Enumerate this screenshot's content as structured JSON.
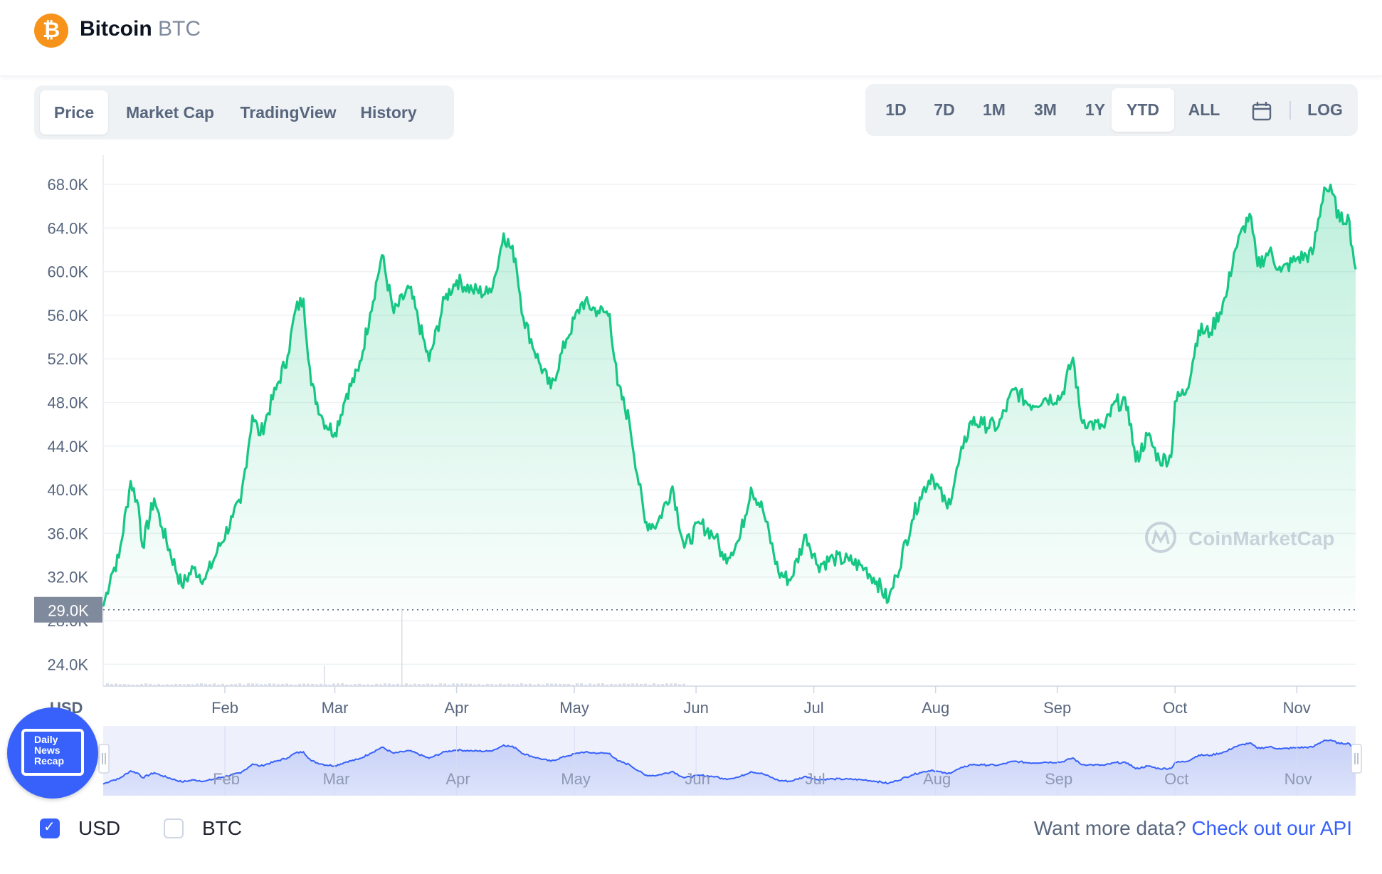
{
  "coin": {
    "name": "Bitcoin",
    "symbol": "BTC",
    "logo_glyph": "₿",
    "logo_color": "#f7931a"
  },
  "tabs": [
    {
      "label": "Price",
      "active": true
    },
    {
      "label": "Market Cap",
      "active": false
    },
    {
      "label": "TradingView",
      "active": false
    },
    {
      "label": "History",
      "active": false
    }
  ],
  "ranges": [
    {
      "label": "1D",
      "active": false
    },
    {
      "label": "7D",
      "active": false
    },
    {
      "label": "1M",
      "active": false
    },
    {
      "label": "3M",
      "active": false
    },
    {
      "label": "1Y",
      "active": false
    },
    {
      "label": "YTD",
      "active": true
    },
    {
      "label": "ALL",
      "active": false
    }
  ],
  "calendar_icon": "calendar-icon",
  "log_label": "LOG",
  "chart_data": {
    "type": "area",
    "title": "",
    "xlabel": "",
    "ylabel": "",
    "currency_label": "USD",
    "watermark": "CoinMarketCap",
    "ylim": [
      22000,
      70000
    ],
    "y_ticks": [
      24000,
      28000,
      32000,
      36000,
      40000,
      44000,
      48000,
      52000,
      56000,
      60000,
      64000,
      68000
    ],
    "y_tick_labels": [
      "24.0K",
      "28.0K",
      "32.0K",
      "36.0K",
      "40.0K",
      "44.0K",
      "48.0K",
      "52.0K",
      "56.0K",
      "60.0K",
      "64.0K",
      "68.0K"
    ],
    "reference_line": {
      "value": 29000,
      "label": "29.0K"
    },
    "x_range": [
      "2021-01-01",
      "2021-11-16"
    ],
    "x_ticks": [
      {
        "date": "2021-02-01",
        "label": "Feb"
      },
      {
        "date": "2021-03-01",
        "label": "Mar"
      },
      {
        "date": "2021-04-01",
        "label": "Apr"
      },
      {
        "date": "2021-05-01",
        "label": "May"
      },
      {
        "date": "2021-06-01",
        "label": "Jun"
      },
      {
        "date": "2021-07-01",
        "label": "Jul"
      },
      {
        "date": "2021-08-01",
        "label": "Aug"
      },
      {
        "date": "2021-09-01",
        "label": "Sep"
      },
      {
        "date": "2021-10-01",
        "label": "Oct"
      },
      {
        "date": "2021-11-01",
        "label": "Nov"
      }
    ],
    "line_color": "#16c784",
    "grid": true,
    "series": [
      {
        "x": [
          "2021-01-01",
          "2021-01-03",
          "2021-01-05",
          "2021-01-08",
          "2021-01-10",
          "2021-01-11",
          "2021-01-14",
          "2021-01-16",
          "2021-01-21",
          "2021-01-24",
          "2021-01-27",
          "2021-01-30",
          "2021-02-03",
          "2021-02-05",
          "2021-02-08",
          "2021-02-10",
          "2021-02-14",
          "2021-02-17",
          "2021-02-19",
          "2021-02-21",
          "2021-02-23",
          "2021-02-26",
          "2021-03-01",
          "2021-03-04",
          "2021-03-07",
          "2021-03-10",
          "2021-03-13",
          "2021-03-16",
          "2021-03-20",
          "2021-03-25",
          "2021-03-29",
          "2021-04-01",
          "2021-04-05",
          "2021-04-09",
          "2021-04-11",
          "2021-04-13",
          "2021-04-16",
          "2021-04-18",
          "2021-04-22",
          "2021-04-25",
          "2021-04-29",
          "2021-05-03",
          "2021-05-07",
          "2021-05-10",
          "2021-05-12",
          "2021-05-15",
          "2021-05-19",
          "2021-05-22",
          "2021-05-26",
          "2021-05-29",
          "2021-06-02",
          "2021-06-06",
          "2021-06-08",
          "2021-06-12",
          "2021-06-15",
          "2021-06-18",
          "2021-06-22",
          "2021-06-25",
          "2021-06-29",
          "2021-07-02",
          "2021-07-06",
          "2021-07-10",
          "2021-07-14",
          "2021-07-17",
          "2021-07-20",
          "2021-07-22",
          "2021-07-26",
          "2021-07-28",
          "2021-07-31",
          "2021-08-04",
          "2021-08-08",
          "2021-08-10",
          "2021-08-13",
          "2021-08-17",
          "2021-08-21",
          "2021-08-25",
          "2021-08-29",
          "2021-09-02",
          "2021-09-05",
          "2021-09-07",
          "2021-09-09",
          "2021-09-13",
          "2021-09-16",
          "2021-09-19",
          "2021-09-21",
          "2021-09-24",
          "2021-09-27",
          "2021-09-30",
          "2021-10-01",
          "2021-10-04",
          "2021-10-07",
          "2021-10-10",
          "2021-10-14",
          "2021-10-16",
          "2021-10-20",
          "2021-10-22",
          "2021-10-25",
          "2021-10-28",
          "2021-11-01",
          "2021-11-05",
          "2021-11-08",
          "2021-11-10",
          "2021-11-12",
          "2021-11-14",
          "2021-11-16"
        ],
        "values": [
          29300,
          32200,
          33800,
          40800,
          38500,
          34800,
          39200,
          36500,
          31200,
          32800,
          31800,
          34300,
          37500,
          38800,
          46800,
          45000,
          49200,
          52300,
          56500,
          57500,
          49600,
          46400,
          45200,
          48800,
          50900,
          56200,
          61500,
          56200,
          58500,
          51800,
          57500,
          59200,
          58300,
          58000,
          59800,
          63500,
          61200,
          55800,
          51700,
          49300,
          53800,
          57200,
          56400,
          56100,
          49600,
          46300,
          37000,
          36800,
          40300,
          34700,
          36900,
          35700,
          33600,
          35400,
          40200,
          38200,
          32400,
          31700,
          35900,
          33100,
          33700,
          33500,
          32800,
          31600,
          29800,
          32100,
          37200,
          39300,
          41400,
          38300,
          43800,
          46300,
          46000,
          45800,
          49200,
          47800,
          48400,
          48500,
          52100,
          46600,
          46100,
          45700,
          48100,
          47600,
          42600,
          45000,
          42700,
          43000,
          48100,
          49200,
          54600,
          54400,
          57700,
          61700,
          65300,
          60500,
          61900,
          60000,
          61200,
          61600,
          67700,
          67200,
          64600,
          65200,
          60200
        ]
      }
    ]
  },
  "navigator": {
    "month_labels": [
      "Feb",
      "Mar",
      "Apr",
      "May",
      "Jun",
      "Jul",
      "Aug",
      "Sep",
      "Oct",
      "Nov"
    ]
  },
  "news_badge": {
    "text": "Daily\nNews\nRecap"
  },
  "currency_options": [
    {
      "label": "USD",
      "checked": true
    },
    {
      "label": "BTC",
      "checked": false
    }
  ],
  "api_promo": {
    "text": "Want more data?",
    "link": "Check out our API"
  }
}
